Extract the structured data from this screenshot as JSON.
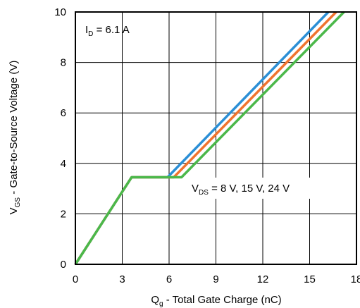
{
  "chart_data": {
    "type": "line",
    "xlabel": {
      "main": "Q",
      "sub": "g",
      "rest": " - Total Gate Charge (nC)"
    },
    "ylabel": {
      "main": "V",
      "sub": "GS",
      "rest": " - Gate-to-Source Voltage (V)"
    },
    "xlim": [
      0,
      18
    ],
    "ylim": [
      0,
      10
    ],
    "xticks": [
      "0",
      "3",
      "6",
      "9",
      "12",
      "15",
      "18"
    ],
    "yticks": [
      "0",
      "2",
      "4",
      "6",
      "8",
      "10"
    ],
    "grid": true,
    "series": [
      {
        "color": "#2b8fd6",
        "x": [
          0,
          3.6,
          5.9,
          16.2
        ],
        "y": [
          0,
          3.45,
          3.45,
          10
        ]
      },
      {
        "color": "#f0742f",
        "x": [
          0,
          3.6,
          6.3,
          16.7
        ],
        "y": [
          0,
          3.45,
          3.45,
          10
        ]
      },
      {
        "color": "#4bb84a",
        "x": [
          0,
          3.6,
          6.8,
          17.2
        ],
        "y": [
          0,
          3.45,
          3.45,
          10
        ]
      }
    ],
    "annotations": {
      "id": {
        "main": "I",
        "sub": "D",
        "rest": " = 6.1 A"
      },
      "vds": {
        "main": "V",
        "sub": "DS",
        "rest": " = 8 V, 15 V, 24 V"
      }
    }
  }
}
